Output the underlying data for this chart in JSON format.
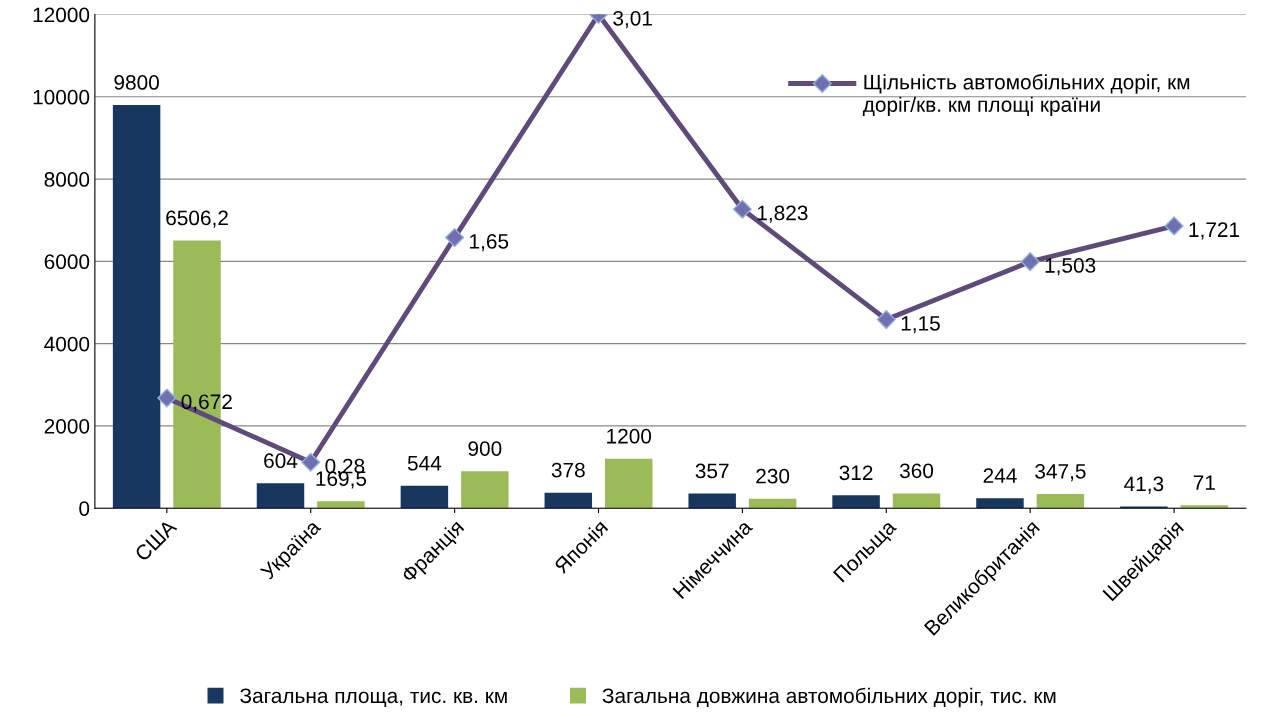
{
  "chart_data": {
    "type": "bar",
    "categories": [
      "США",
      "Україна",
      "Франція",
      "Японія",
      "Німеччина",
      "Польща",
      "Великобританія",
      "Швейцарія"
    ],
    "series": [
      {
        "name": "Загальна площа, тис. кв. км",
        "color": "#17375e",
        "values": [
          9800,
          604,
          544,
          378,
          357,
          312,
          244,
          41.3
        ],
        "value_labels": [
          "9800",
          "604",
          "544",
          "378",
          "357",
          "312",
          "244",
          "41,3"
        ]
      },
      {
        "name": "Загальна довжина автомобільних доріг, тис. км",
        "color": "#9bbb59",
        "values": [
          6506.2,
          169.5,
          900,
          1200,
          230,
          360,
          347.5,
          71
        ],
        "value_labels": [
          "6506,2",
          "169,5",
          "900",
          "1200",
          "230",
          "360",
          "347,5",
          "71"
        ]
      },
      {
        "name": "Щільність автомобільних доріг, км доріг/кв. км площі країни",
        "type": "line",
        "axis": "y2",
        "color": "#604a7b",
        "marker": "diamond",
        "values": [
          0.672,
          0.28,
          1.65,
          3.01,
          1.823,
          1.15,
          1.503,
          1.721
        ],
        "value_labels": [
          "0,672",
          "0,28",
          "1,65",
          "3,01",
          "1,823",
          "1,15",
          "1,503",
          "1,721"
        ]
      }
    ],
    "ylim": [
      0,
      12000
    ],
    "yticks": [
      0,
      2000,
      4000,
      6000,
      8000,
      10000,
      12000
    ],
    "y2lim": [
      0,
      3.01
    ],
    "grid": "y",
    "legend": "bottom"
  }
}
